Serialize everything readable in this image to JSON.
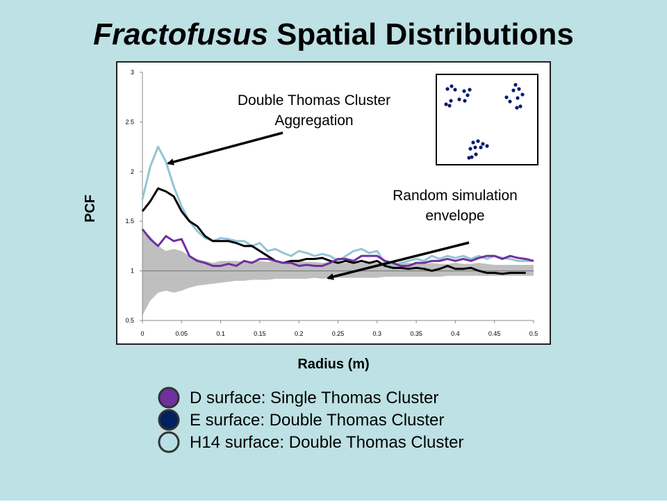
{
  "chart_data": {
    "type": "line",
    "title_italic": "Fractofusus",
    "title": "Spatial Distributions",
    "xlabel": "Radius (m)",
    "ylabel": "PCF",
    "xlim": [
      0,
      0.5
    ],
    "ylim": [
      0.5,
      3
    ],
    "xticks": [
      0,
      0.05,
      0.1,
      0.15,
      0.2,
      0.25,
      0.3,
      0.35,
      0.4,
      0.45,
      0.5
    ],
    "yticks": [
      0.5,
      1,
      1.5,
      2,
      2.5,
      3
    ],
    "reference_line": 1,
    "x": [
      0,
      0.01,
      0.02,
      0.03,
      0.04,
      0.05,
      0.06,
      0.07,
      0.08,
      0.09,
      0.1,
      0.11,
      0.12,
      0.13,
      0.14,
      0.15,
      0.16,
      0.17,
      0.18,
      0.19,
      0.2,
      0.21,
      0.22,
      0.23,
      0.24,
      0.25,
      0.26,
      0.27,
      0.28,
      0.29,
      0.3,
      0.31,
      0.32,
      0.33,
      0.34,
      0.35,
      0.36,
      0.37,
      0.38,
      0.39,
      0.4,
      0.41,
      0.42,
      0.43,
      0.44,
      0.45,
      0.46,
      0.47,
      0.48,
      0.49,
      0.5
    ],
    "envelope": {
      "color": "#bfbfbf",
      "upper": [
        1.4,
        1.35,
        1.25,
        1.2,
        1.22,
        1.2,
        1.15,
        1.12,
        1.1,
        1.08,
        1.1,
        1.1,
        1.1,
        1.09,
        1.1,
        1.1,
        1.09,
        1.1,
        1.09,
        1.09,
        1.1,
        1.09,
        1.09,
        1.08,
        1.09,
        1.08,
        1.08,
        1.09,
        1.08,
        1.08,
        1.08,
        1.08,
        1.07,
        1.08,
        1.08,
        1.07,
        1.07,
        1.08,
        1.07,
        1.07,
        1.08,
        1.07,
        1.07,
        1.08,
        1.07,
        1.06,
        1.06,
        1.06,
        1.06,
        1.06,
        1.06
      ],
      "lower": [
        0.55,
        0.7,
        0.78,
        0.8,
        0.78,
        0.8,
        0.83,
        0.85,
        0.86,
        0.87,
        0.88,
        0.89,
        0.9,
        0.9,
        0.91,
        0.91,
        0.91,
        0.92,
        0.92,
        0.92,
        0.92,
        0.92,
        0.93,
        0.92,
        0.93,
        0.93,
        0.93,
        0.93,
        0.93,
        0.93,
        0.93,
        0.94,
        0.94,
        0.94,
        0.94,
        0.94,
        0.94,
        0.94,
        0.94,
        0.95,
        0.95,
        0.95,
        0.95,
        0.95,
        0.95,
        0.95,
        0.95,
        0.95,
        0.95,
        0.95,
        0.95
      ]
    },
    "series": [
      {
        "name": "D surface: Single Thomas Cluster",
        "color": "#7030a0",
        "legend_color": "#7030a0",
        "values": [
          1.42,
          1.32,
          1.25,
          1.35,
          1.3,
          1.32,
          1.15,
          1.1,
          1.08,
          1.05,
          1.05,
          1.07,
          1.05,
          1.1,
          1.08,
          1.12,
          1.12,
          1.1,
          1.08,
          1.08,
          1.05,
          1.06,
          1.05,
          1.05,
          1.08,
          1.12,
          1.12,
          1.1,
          1.15,
          1.15,
          1.15,
          1.1,
          1.08,
          1.05,
          1.05,
          1.08,
          1.08,
          1.1,
          1.1,
          1.12,
          1.1,
          1.12,
          1.1,
          1.13,
          1.15,
          1.15,
          1.12,
          1.15,
          1.13,
          1.12,
          1.1
        ]
      },
      {
        "name": "E surface: Double Thomas Cluster",
        "color": "#000000",
        "legend_color": "#002060",
        "values": [
          1.6,
          1.7,
          1.83,
          1.8,
          1.75,
          1.6,
          1.5,
          1.45,
          1.35,
          1.3,
          1.3,
          1.3,
          1.28,
          1.25,
          1.25,
          1.2,
          1.15,
          1.1,
          1.08,
          1.1,
          1.1,
          1.12,
          1.12,
          1.13,
          1.1,
          1.08,
          1.1,
          1.08,
          1.1,
          1.08,
          1.1,
          1.05,
          1.03,
          1.03,
          1.02,
          1.03,
          1.02,
          1.0,
          1.02,
          1.05,
          1.02,
          1.02,
          1.03,
          1.0,
          0.98,
          0.98,
          0.97,
          0.98,
          0.98,
          0.98,
          null
        ]
      },
      {
        "name": "H14 surface: Double Thomas Cluster",
        "color": "#92c5d6",
        "legend_color": "#b7e0e6",
        "values": [
          1.72,
          2.05,
          2.25,
          2.1,
          1.85,
          1.65,
          1.5,
          1.4,
          1.33,
          1.3,
          1.33,
          1.32,
          1.3,
          1.3,
          1.25,
          1.28,
          1.2,
          1.22,
          1.18,
          1.15,
          1.2,
          1.18,
          1.15,
          1.17,
          1.15,
          1.1,
          1.15,
          1.2,
          1.22,
          1.18,
          1.2,
          1.08,
          1.05,
          1.08,
          1.1,
          1.12,
          1.1,
          1.15,
          1.12,
          1.15,
          1.13,
          1.15,
          1.12,
          1.15,
          1.12,
          1.15,
          1.13,
          1.12,
          1.1,
          1.1,
          1.1
        ]
      }
    ],
    "annotations": [
      {
        "lines": [
          "Double Thomas Cluster",
          "Aggregation"
        ]
      },
      {
        "lines": [
          "Random simulation",
          "envelope"
        ]
      }
    ]
  }
}
